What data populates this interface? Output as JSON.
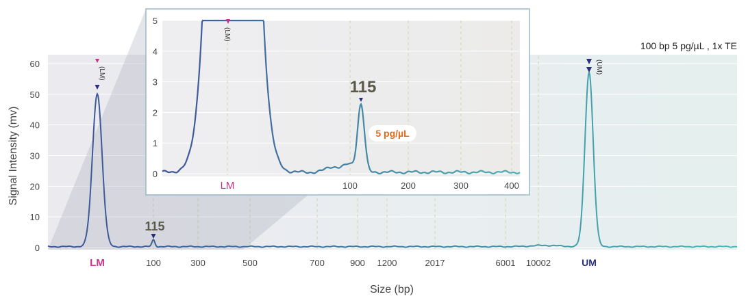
{
  "chart_data": [
    {
      "type": "line",
      "annotation": "100 bp 5 pg/µL , 1x TE",
      "xlabel": "Size (bp)",
      "ylabel": "Signal Intensity (mv)",
      "ylim": [
        0,
        60
      ],
      "y_ticks": [
        "0",
        "10",
        "20",
        "30",
        "40",
        "50",
        "60"
      ],
      "x_ticks": [
        "LM",
        "100",
        "300",
        "500",
        "700",
        "900",
        "1200",
        "2017",
        "6001",
        "10002",
        "UM"
      ],
      "peaks": [
        {
          "label": "LM",
          "marker": "(LM)",
          "height": 50,
          "marker_color": "#c8338a"
        },
        {
          "label": "115",
          "height": 2.2
        },
        {
          "label": "UM",
          "marker": "(UM)",
          "height": 57,
          "marker_color": "#2a2f7a"
        }
      ]
    },
    {
      "type": "line",
      "inset": true,
      "ylim": [
        0,
        5
      ],
      "y_ticks": [
        "0",
        "1",
        "2",
        "3",
        "4",
        "5"
      ],
      "x_ticks": [
        "LM",
        "100",
        "200",
        "300",
        "400"
      ],
      "lm_marker": "(LM)",
      "peak_label": "115",
      "peak_height": 2.2,
      "concentration_label": "5 pg/µL"
    }
  ],
  "colors": {
    "lm": "#c8338a",
    "um": "#2a2f7a",
    "line_start": "#3a5a9a",
    "line_end": "#4ab0b0",
    "conc": "#e06a1a"
  }
}
